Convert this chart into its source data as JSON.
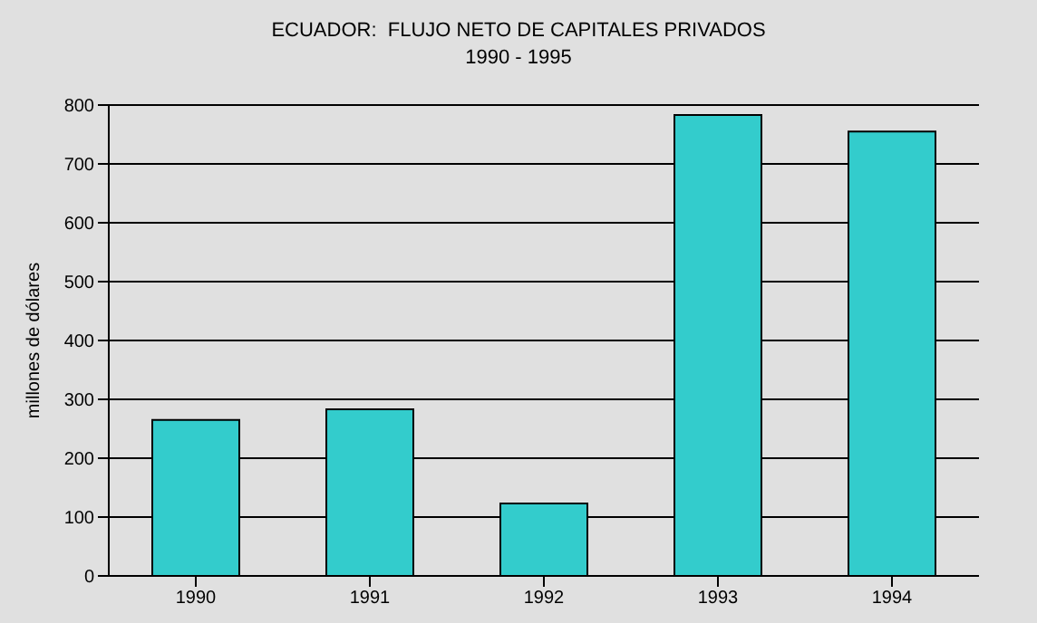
{
  "chart_data": {
    "type": "bar",
    "title": "ECUADOR:  FLUJO NETO DE CAPITALES PRIVADOS",
    "subtitle": "1990 - 1995",
    "ylabel": "millones de dólares",
    "categories": [
      "1990",
      "1991",
      "1992",
      "1993",
      "1994"
    ],
    "values": [
      265,
      283,
      123,
      783,
      755
    ],
    "color": "#33cccc",
    "ylim": [
      0,
      800
    ],
    "yticks": [
      0,
      100,
      200,
      300,
      400,
      500,
      600,
      700,
      800
    ],
    "grid": "y"
  }
}
